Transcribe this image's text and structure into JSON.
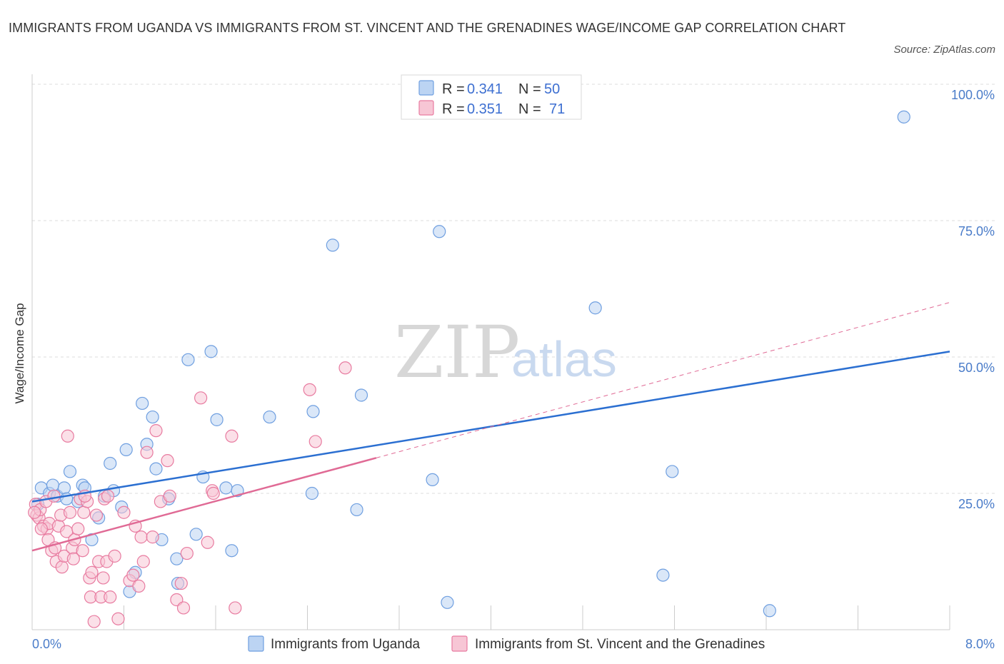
{
  "header": {
    "title": "IMMIGRANTS FROM UGANDA VS IMMIGRANTS FROM ST. VINCENT AND THE GRENADINES WAGE/INCOME GAP CORRELATION CHART",
    "source": "Source: ZipAtlas.com"
  },
  "legend_box": {
    "rows": [
      {
        "r_label": "R =",
        "r_value": "0.341",
        "n_label": "N =",
        "n_value": "50"
      },
      {
        "r_label": "R =",
        "r_value": "0.351",
        "n_label": "N =",
        "n_value": "71"
      }
    ]
  },
  "watermark": {
    "zip": "ZIP",
    "atlas": "atlas"
  },
  "colors": {
    "uganda": "#6f9fe0",
    "uganda_fill": "#bcd4f3",
    "svg": "#e87ba0",
    "svg_fill": "#f7c6d5",
    "blue_line": "#2b6fd1",
    "pink_line": "#e06a95",
    "grid": "#dcdcdc",
    "tick_text": "#4a7cc9"
  },
  "chart_data": {
    "type": "scatter",
    "title": "IMMIGRANTS FROM UGANDA VS IMMIGRANTS FROM ST. VINCENT AND THE GRENADINES WAGE/INCOME GAP CORRELATION CHART",
    "xlabel": "",
    "ylabel": "Wage/Income Gap",
    "xlim": [
      0,
      8
    ],
    "ylim": [
      0,
      100
    ],
    "x_tick_labels": [
      "0.0%",
      "8.0%"
    ],
    "y_tick_labels": [
      "25.0%",
      "50.0%",
      "75.0%",
      "100.0%"
    ],
    "y_ticks": [
      25,
      50,
      75,
      100
    ],
    "grid": true,
    "legend_position": "top-center",
    "series": [
      {
        "name": "Immigrants from Uganda",
        "stats": {
          "R": 0.341,
          "N": 50
        },
        "trend": {
          "x": [
            0,
            8
          ],
          "y": [
            23.5,
            51.0
          ],
          "style": "solid"
        },
        "points": [
          [
            0.08,
            26.0
          ],
          [
            0.15,
            25.0
          ],
          [
            0.18,
            26.5
          ],
          [
            0.22,
            24.5
          ],
          [
            0.28,
            26.0
          ],
          [
            0.33,
            29.0
          ],
          [
            0.4,
            23.5
          ],
          [
            0.44,
            26.5
          ],
          [
            0.46,
            26.0
          ],
          [
            0.52,
            16.5
          ],
          [
            0.58,
            20.5
          ],
          [
            0.63,
            24.5
          ],
          [
            0.68,
            30.5
          ],
          [
            0.71,
            25.5
          ],
          [
            0.78,
            22.5
          ],
          [
            0.82,
            33.0
          ],
          [
            0.85,
            7.0
          ],
          [
            0.9,
            10.5
          ],
          [
            0.96,
            41.5
          ],
          [
            1.0,
            34.0
          ],
          [
            1.05,
            39.0
          ],
          [
            1.08,
            29.5
          ],
          [
            1.13,
            16.5
          ],
          [
            1.19,
            24.0
          ],
          [
            1.26,
            13.0
          ],
          [
            1.27,
            8.5
          ],
          [
            1.36,
            49.5
          ],
          [
            1.43,
            17.5
          ],
          [
            1.49,
            28.0
          ],
          [
            1.56,
            51.0
          ],
          [
            1.61,
            38.5
          ],
          [
            1.69,
            26.0
          ],
          [
            1.74,
            14.5
          ],
          [
            1.79,
            25.5
          ],
          [
            2.07,
            39.0
          ],
          [
            2.44,
            25.0
          ],
          [
            2.45,
            40.0
          ],
          [
            2.62,
            70.5
          ],
          [
            2.83,
            22.0
          ],
          [
            2.87,
            43.0
          ],
          [
            3.49,
            27.5
          ],
          [
            3.55,
            73.0
          ],
          [
            3.62,
            5.0
          ],
          [
            4.91,
            59.0
          ],
          [
            5.5,
            10.0
          ],
          [
            5.58,
            29.0
          ],
          [
            6.43,
            3.5
          ],
          [
            7.6,
            94.0
          ],
          [
            0.05,
            23.0
          ],
          [
            0.3,
            24.0
          ]
        ]
      },
      {
        "name": "Immigrants from St. Vincent and the Grenadines",
        "stats": {
          "R": 0.351,
          "N": 71
        },
        "trend": {
          "x": [
            0,
            3.0,
            8
          ],
          "y": [
            14.5,
            31.5,
            60.0
          ],
          "style": "solid-then-dashed"
        },
        "points": [
          [
            0.03,
            23.0
          ],
          [
            0.04,
            21.0
          ],
          [
            0.06,
            20.5
          ],
          [
            0.07,
            22.0
          ],
          [
            0.1,
            19.0
          ],
          [
            0.12,
            23.5
          ],
          [
            0.13,
            18.5
          ],
          [
            0.15,
            19.5
          ],
          [
            0.17,
            14.5
          ],
          [
            0.19,
            24.5
          ],
          [
            0.21,
            12.5
          ],
          [
            0.23,
            19.0
          ],
          [
            0.25,
            21.0
          ],
          [
            0.26,
            11.5
          ],
          [
            0.28,
            13.5
          ],
          [
            0.3,
            18.0
          ],
          [
            0.31,
            35.5
          ],
          [
            0.33,
            21.5
          ],
          [
            0.35,
            15.0
          ],
          [
            0.37,
            16.5
          ],
          [
            0.4,
            18.5
          ],
          [
            0.42,
            24.0
          ],
          [
            0.44,
            14.5
          ],
          [
            0.45,
            21.5
          ],
          [
            0.48,
            23.5
          ],
          [
            0.5,
            9.5
          ],
          [
            0.51,
            6.0
          ],
          [
            0.52,
            10.5
          ],
          [
            0.54,
            1.5
          ],
          [
            0.56,
            21.0
          ],
          [
            0.58,
            12.5
          ],
          [
            0.6,
            6.0
          ],
          [
            0.62,
            9.5
          ],
          [
            0.63,
            24.0
          ],
          [
            0.65,
            12.5
          ],
          [
            0.68,
            6.0
          ],
          [
            0.72,
            13.5
          ],
          [
            0.75,
            2.0
          ],
          [
            0.8,
            21.5
          ],
          [
            0.85,
            9.0
          ],
          [
            0.9,
            19.0
          ],
          [
            0.93,
            8.0
          ],
          [
            0.95,
            17.0
          ],
          [
            0.97,
            12.5
          ],
          [
            1.0,
            32.5
          ],
          [
            1.05,
            17.0
          ],
          [
            1.08,
            36.5
          ],
          [
            1.12,
            23.5
          ],
          [
            1.18,
            31.0
          ],
          [
            1.2,
            24.5
          ],
          [
            1.26,
            5.5
          ],
          [
            1.3,
            8.5
          ],
          [
            1.32,
            4.0
          ],
          [
            1.35,
            14.0
          ],
          [
            1.47,
            42.5
          ],
          [
            1.53,
            16.0
          ],
          [
            1.57,
            25.5
          ],
          [
            1.58,
            25.0
          ],
          [
            1.74,
            35.5
          ],
          [
            1.77,
            4.0
          ],
          [
            2.42,
            44.0
          ],
          [
            2.47,
            34.5
          ],
          [
            2.73,
            48.0
          ],
          [
            0.02,
            21.5
          ],
          [
            0.08,
            18.5
          ],
          [
            0.14,
            16.5
          ],
          [
            0.2,
            15.0
          ],
          [
            0.36,
            13.0
          ],
          [
            0.46,
            24.5
          ],
          [
            0.66,
            24.5
          ],
          [
            0.88,
            10.0
          ]
        ]
      }
    ]
  },
  "bottom_legend": {
    "items": [
      {
        "label": "Immigrants from Uganda"
      },
      {
        "label": "Immigrants from St. Vincent and the Grenadines"
      }
    ]
  }
}
